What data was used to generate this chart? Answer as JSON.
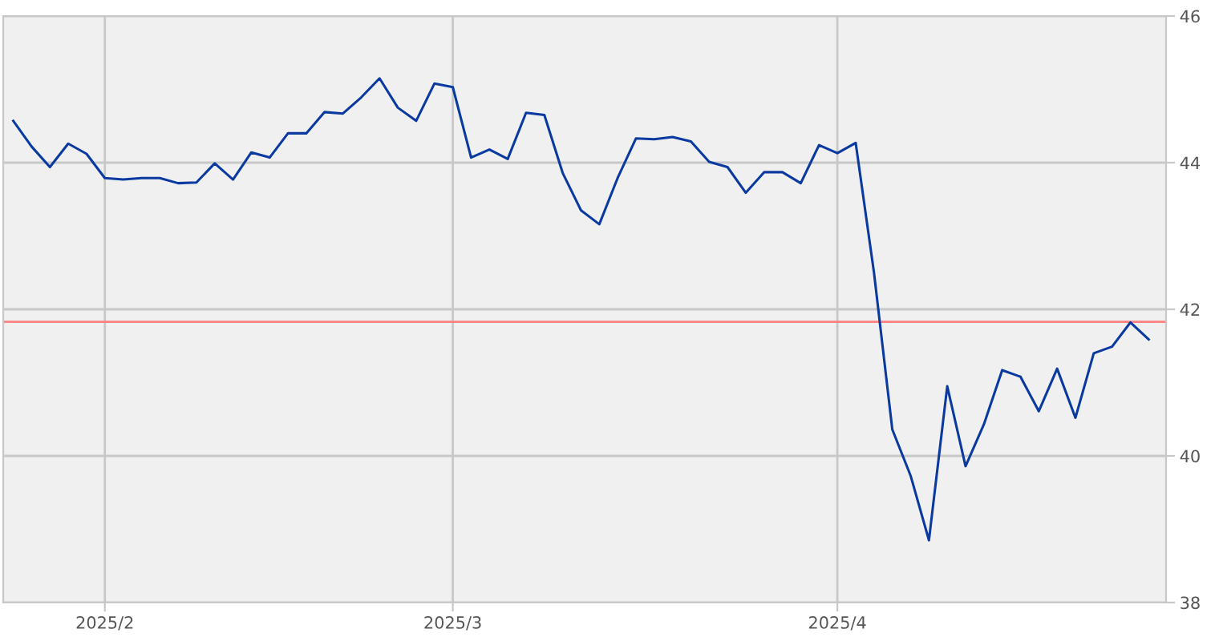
{
  "chart_data": {
    "type": "line",
    "categories": [
      null,
      null,
      null,
      null,
      null,
      "2025/2",
      null,
      null,
      null,
      null,
      null,
      null,
      null,
      null,
      null,
      null,
      null,
      null,
      null,
      null,
      null,
      null,
      null,
      null,
      "2025/3",
      null,
      null,
      null,
      null,
      null,
      null,
      null,
      null,
      null,
      null,
      null,
      null,
      null,
      null,
      null,
      null,
      null,
      null,
      null,
      null,
      "2025/4",
      null,
      null,
      null,
      null,
      null,
      null,
      null,
      null,
      null,
      null,
      null,
      null,
      null,
      null,
      null,
      null,
      null
    ],
    "series": [
      {
        "color": "#0a3aa0",
        "values": [
          44.57,
          44.22,
          43.94,
          44.26,
          44.12,
          43.79,
          43.77,
          43.79,
          43.79,
          43.72,
          43.73,
          43.99,
          43.77,
          44.14,
          44.07,
          44.4,
          44.4,
          44.69,
          44.67,
          44.89,
          45.15,
          44.75,
          44.57,
          45.08,
          45.03,
          44.07,
          44.18,
          44.05,
          44.68,
          44.65,
          43.86,
          43.35,
          43.16,
          43.79,
          44.33,
          44.32,
          44.35,
          44.29,
          44.01,
          43.94,
          43.59,
          43.87,
          43.87,
          43.72,
          44.24,
          44.13,
          44.27,
          42.5,
          40.36,
          39.73,
          38.85,
          40.95,
          39.86,
          40.43,
          41.17,
          41.08,
          40.61,
          41.19,
          40.52,
          41.4,
          41.49,
          41.82,
          41.59
        ]
      }
    ],
    "ylim": [
      38,
      46
    ],
    "yticks": [
      38,
      40,
      42,
      44,
      46
    ],
    "grid": true,
    "legend": false,
    "marker": "none",
    "line_style": "solid",
    "ref_lines": [
      {
        "axis": "y",
        "value": 41.83,
        "color": "#ff8080"
      }
    ]
  }
}
